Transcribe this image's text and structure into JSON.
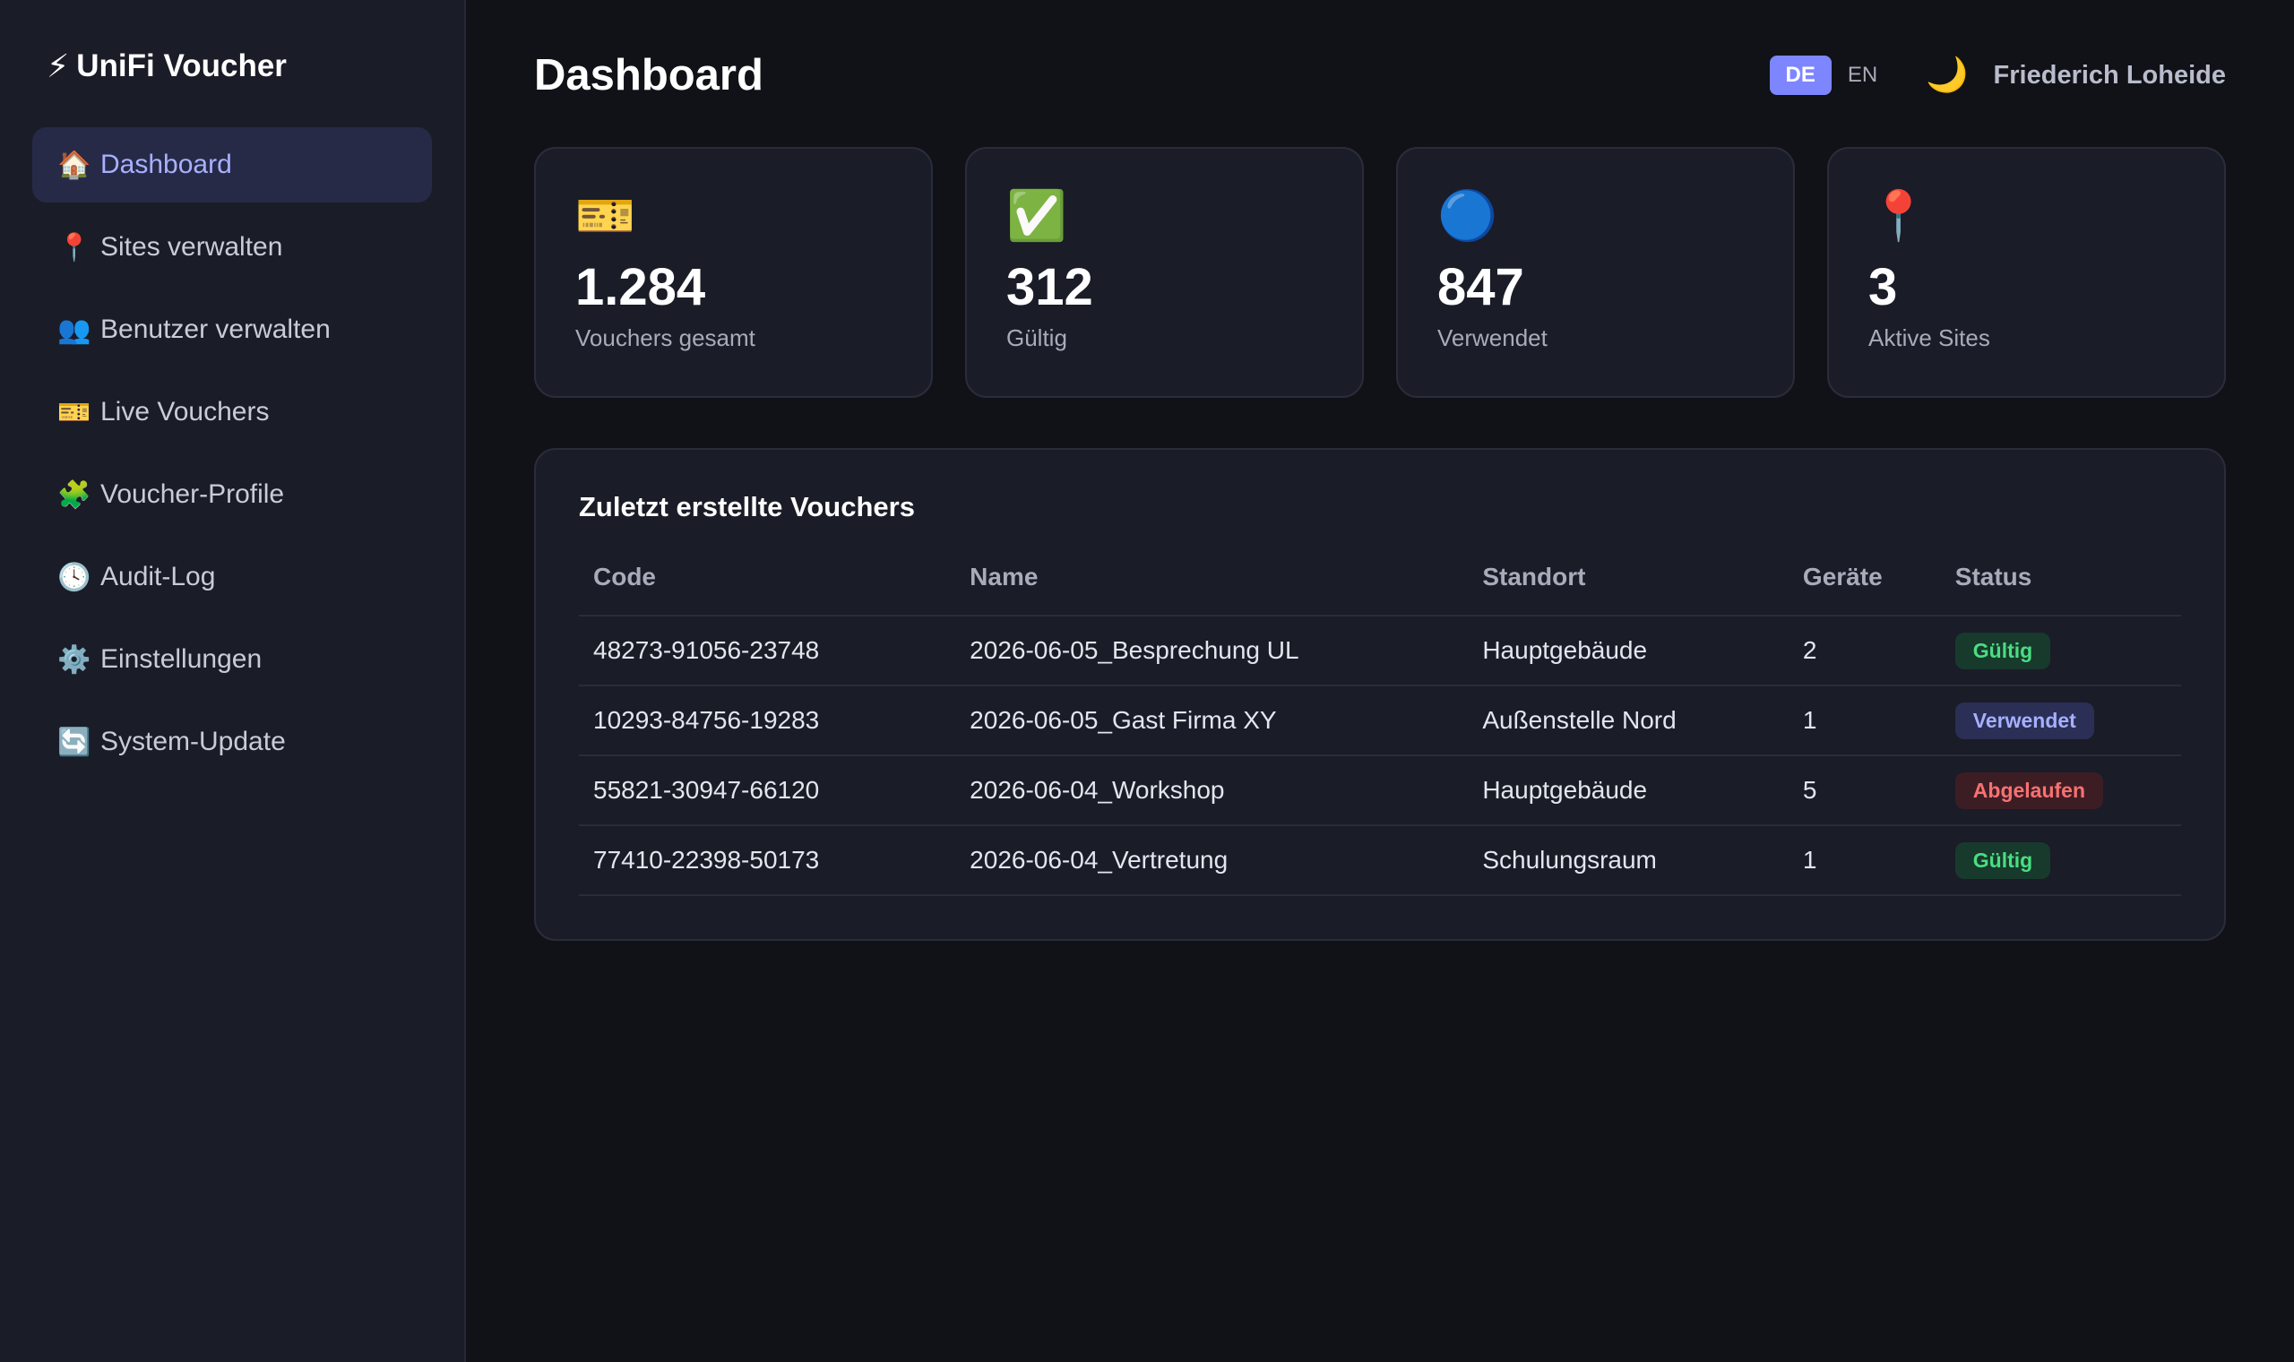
{
  "brand": {
    "icon": "⚡",
    "icon_name": "lightning-icon",
    "title": "UniFi Voucher"
  },
  "sidebar": {
    "items": [
      {
        "icon": "🏠",
        "icon_name": "home-icon",
        "label": "Dashboard",
        "active": true
      },
      {
        "icon": "📍",
        "icon_name": "pin-icon",
        "label": "Sites verwalten",
        "active": false
      },
      {
        "icon": "👥",
        "icon_name": "users-icon",
        "label": "Benutzer verwalten",
        "active": false
      },
      {
        "icon": "🎫",
        "icon_name": "ticket-icon",
        "label": "Live Vouchers",
        "active": false
      },
      {
        "icon": "🧩",
        "icon_name": "puzzle-icon",
        "label": "Voucher-Profile",
        "active": false
      },
      {
        "icon": "🕓",
        "icon_name": "clock-icon",
        "label": "Audit-Log",
        "active": false
      },
      {
        "icon": "⚙️",
        "icon_name": "gear-icon",
        "label": "Einstellungen",
        "active": false
      },
      {
        "icon": "🔄",
        "icon_name": "refresh-icon",
        "label": "System-Update",
        "active": false
      }
    ]
  },
  "header": {
    "title": "Dashboard",
    "lang_de": "DE",
    "lang_en": "EN",
    "theme_icon": "🌙",
    "user_name": "Friederich Loheide"
  },
  "stats": [
    {
      "icon": "🎫",
      "icon_name": "ticket-icon",
      "value": "1.284",
      "label": "Vouchers gesamt"
    },
    {
      "icon": "✅",
      "icon_name": "check-icon",
      "value": "312",
      "label": "Gültig"
    },
    {
      "icon": "🔵",
      "icon_name": "blue-circle-icon",
      "value": "847",
      "label": "Verwendet"
    },
    {
      "icon": "📍",
      "icon_name": "pin-icon",
      "value": "3",
      "label": "Aktive Sites"
    }
  ],
  "recent": {
    "title": "Zuletzt erstellte Vouchers",
    "columns": {
      "code": "Code",
      "name": "Name",
      "site": "Standort",
      "devices": "Geräte",
      "status": "Status"
    },
    "rows": [
      {
        "code": "48273-91056-23748",
        "name": "2026-06-05_Besprechung UL",
        "site": "Hauptgebäude",
        "devices": "2",
        "status": "Gültig",
        "status_type": "valid"
      },
      {
        "code": "10293-84756-19283",
        "name": "2026-06-05_Gast Firma XY",
        "site": "Außenstelle Nord",
        "devices": "1",
        "status": "Verwendet",
        "status_type": "used"
      },
      {
        "code": "55821-30947-66120",
        "name": "2026-06-04_Workshop",
        "site": "Hauptgebäude",
        "devices": "5",
        "status": "Abgelaufen",
        "status_type": "expired"
      },
      {
        "code": "77410-22398-50173",
        "name": "2026-06-04_Vertretung",
        "site": "Schulungsraum",
        "devices": "1",
        "status": "Gültig",
        "status_type": "valid"
      }
    ]
  }
}
